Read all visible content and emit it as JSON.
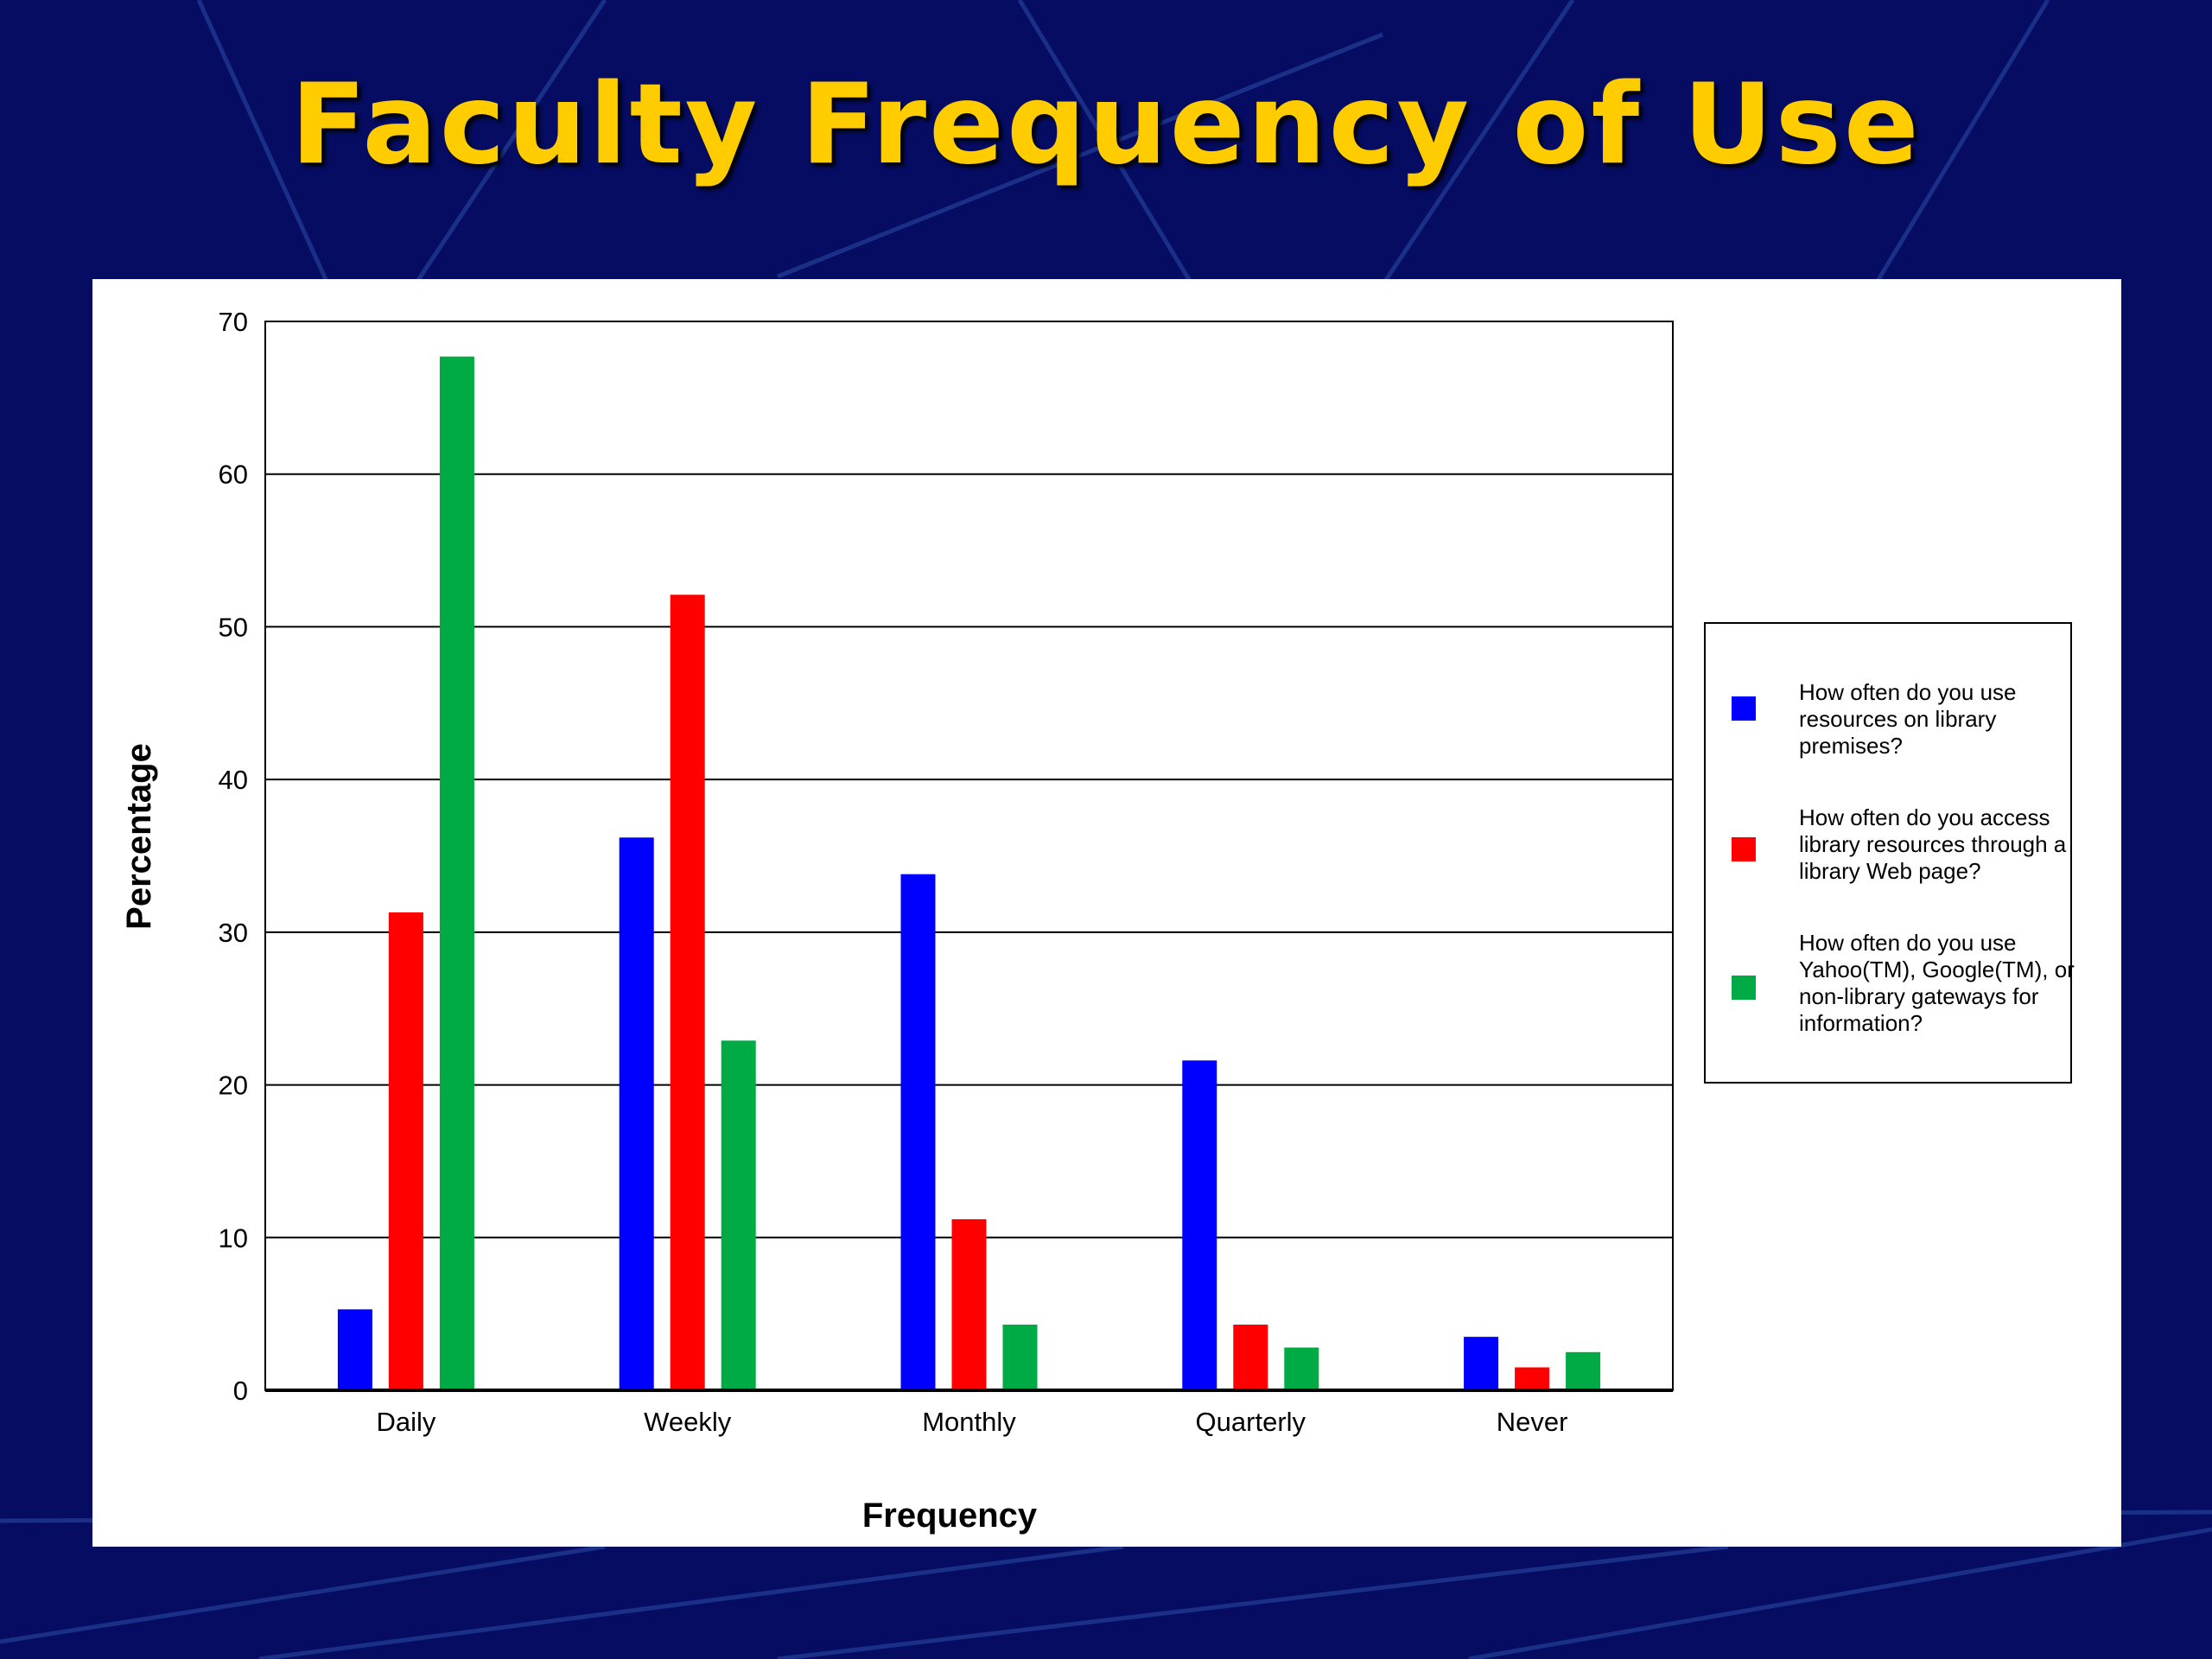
{
  "slide": {
    "title": "Faculty Frequency of Use"
  },
  "colors": {
    "background": "#050c62",
    "title": "#ffcc00",
    "series": [
      "#0000ff",
      "#ff0000",
      "#00aa44"
    ]
  },
  "chart_data": {
    "type": "bar",
    "title": "",
    "xlabel": "Frequency",
    "ylabel": "Percentage",
    "ylim": [
      0,
      70
    ],
    "yticks": [
      0,
      10,
      20,
      30,
      40,
      50,
      60,
      70
    ],
    "grid": true,
    "legend_position": "right",
    "categories": [
      "Daily",
      "Weekly",
      "Monthly",
      "Quarterly",
      "Never"
    ],
    "series": [
      {
        "name": "How often do you use resources on library premises?",
        "color": "#0000ff",
        "values": [
          5.3,
          36.2,
          33.8,
          21.6,
          3.5
        ]
      },
      {
        "name": "How often do you access library resources through a library Web page?",
        "color": "#ff0000",
        "values": [
          31.3,
          52.1,
          11.2,
          4.3,
          1.5
        ]
      },
      {
        "name": "How often do you use Yahoo(TM), Google(TM), or non-library gateways for information?",
        "color": "#00aa44",
        "values": [
          67.7,
          22.9,
          4.3,
          2.8,
          2.5
        ]
      }
    ]
  }
}
